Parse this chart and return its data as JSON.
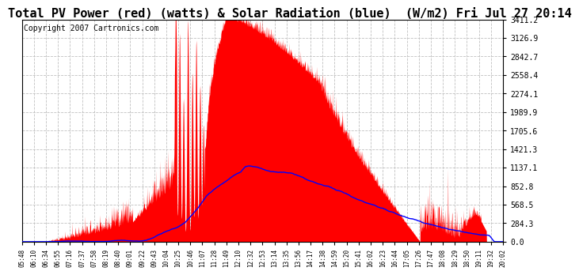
{
  "title": "Total PV Power (red) (watts) & Solar Radiation (blue)  (W/m2) Fri Jul 27 20:14",
  "copyright": "Copyright 2007 Cartronics.com",
  "ymax": 3411.2,
  "yticks": [
    0.0,
    284.3,
    568.5,
    852.8,
    1137.1,
    1421.3,
    1705.6,
    1989.9,
    2274.1,
    2558.4,
    2842.7,
    3126.9,
    3411.2
  ],
  "xtick_labels": [
    "05:48",
    "06:10",
    "06:34",
    "06:55",
    "07:16",
    "07:37",
    "07:58",
    "08:19",
    "08:40",
    "09:01",
    "09:22",
    "09:43",
    "10:04",
    "10:25",
    "10:46",
    "11:07",
    "11:28",
    "11:49",
    "12:10",
    "12:32",
    "12:53",
    "13:14",
    "13:35",
    "13:56",
    "14:17",
    "14:38",
    "14:59",
    "15:20",
    "15:41",
    "16:02",
    "16:23",
    "16:44",
    "17:05",
    "17:26",
    "17:47",
    "18:08",
    "18:29",
    "18:50",
    "19:11",
    "19:32",
    "20:02"
  ],
  "bg_color": "#ffffff",
  "plot_bg_color": "#ffffff",
  "grid_color": "#c0c0c0",
  "red_color": "#ff0000",
  "blue_color": "#0000ff",
  "title_fontsize": 11,
  "copyright_fontsize": 7
}
